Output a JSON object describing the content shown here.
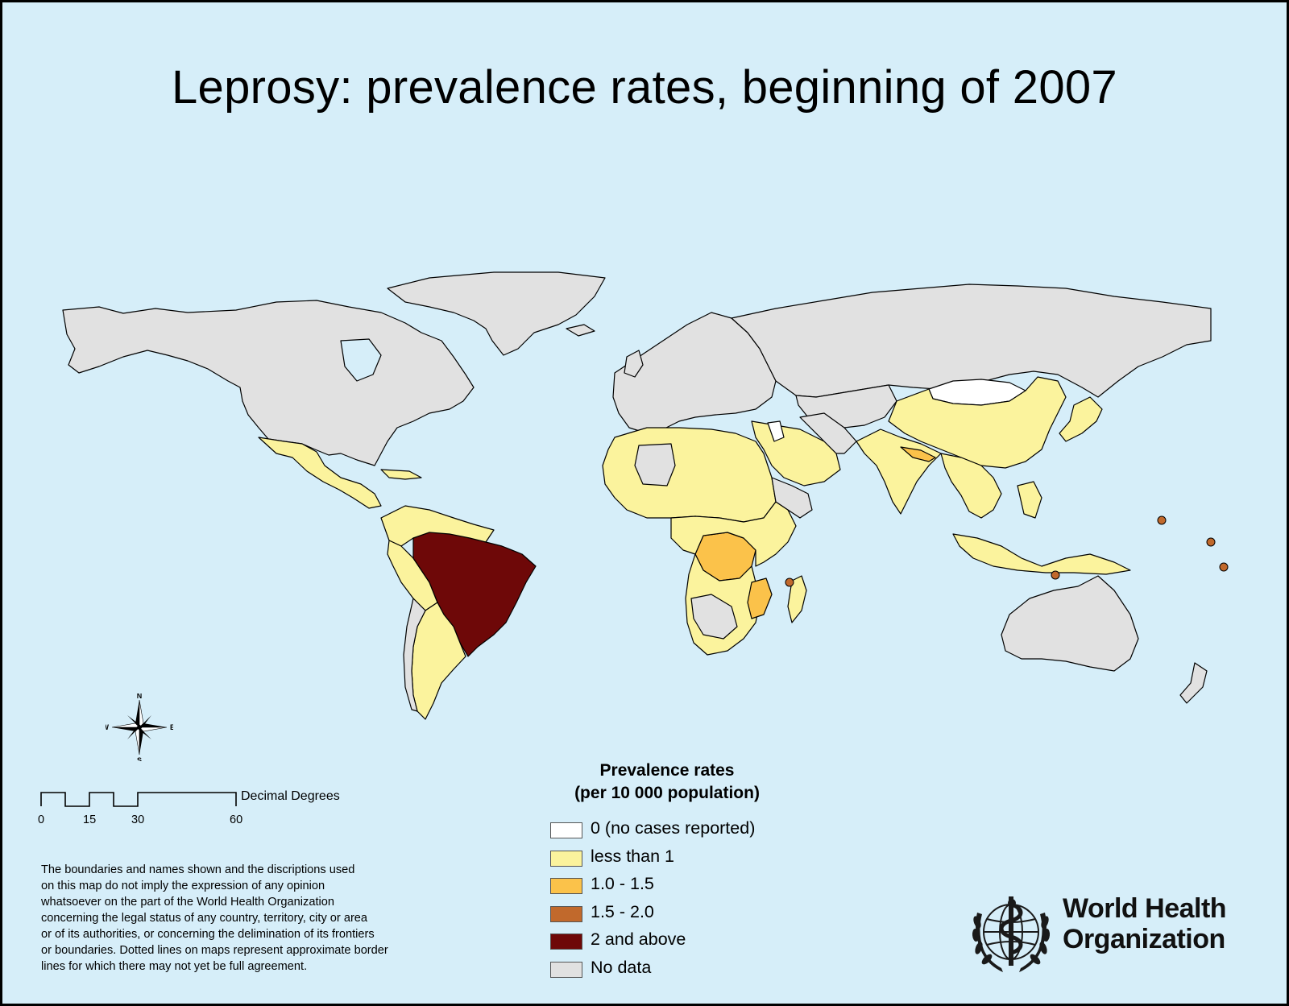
{
  "title": "Leprosy: prevalence rates, beginning of 2007",
  "colors": {
    "ocean": "#d6eef9",
    "land_outline": "#000000",
    "zero": "#ffffff",
    "less_than_1": "#fbf39d",
    "r1_0_1_5": "#fbc24a",
    "r1_5_2_0": "#c1692c",
    "two_and_above": "#6e0808",
    "no_data": "#e1e1e1"
  },
  "legend": {
    "title_line1": "Prevalence rates",
    "title_line2": "(per 10 000 population)",
    "items": [
      {
        "label": "0 (no cases reported)",
        "color": "#ffffff"
      },
      {
        "label": "less than 1",
        "color": "#fbf39d"
      },
      {
        "label": "1.0 - 1.5",
        "color": "#fbc24a"
      },
      {
        "label": "1.5 - 2.0",
        "color": "#c1692c"
      },
      {
        "label": "2 and above",
        "color": "#6e0808"
      },
      {
        "label": "No data",
        "color": "#e1e1e1"
      }
    ]
  },
  "scale_bar": {
    "unit": "Decimal Degrees",
    "ticks": [
      "0",
      "15",
      "30",
      "60"
    ]
  },
  "compass": {
    "n": "N",
    "s": "S",
    "e": "E",
    "w": "W"
  },
  "disclaimer": [
    "The boundaries and names shown and the discriptions used",
    "on this map do not imply the expression of any opinion",
    "whatsoever on the part of the World Health Organization",
    "concerning the legal status of any country, territory, city or area",
    "or of its authorities, or concerning the delimination of its frontiers",
    "or boundaries. Dotted lines on maps represent approximate border",
    "lines for which there may not yet be full agreement."
  ],
  "organization": {
    "name_line1": "World Health",
    "name_line2": "Organization",
    "logo_icon": "who-emblem-icon"
  }
}
